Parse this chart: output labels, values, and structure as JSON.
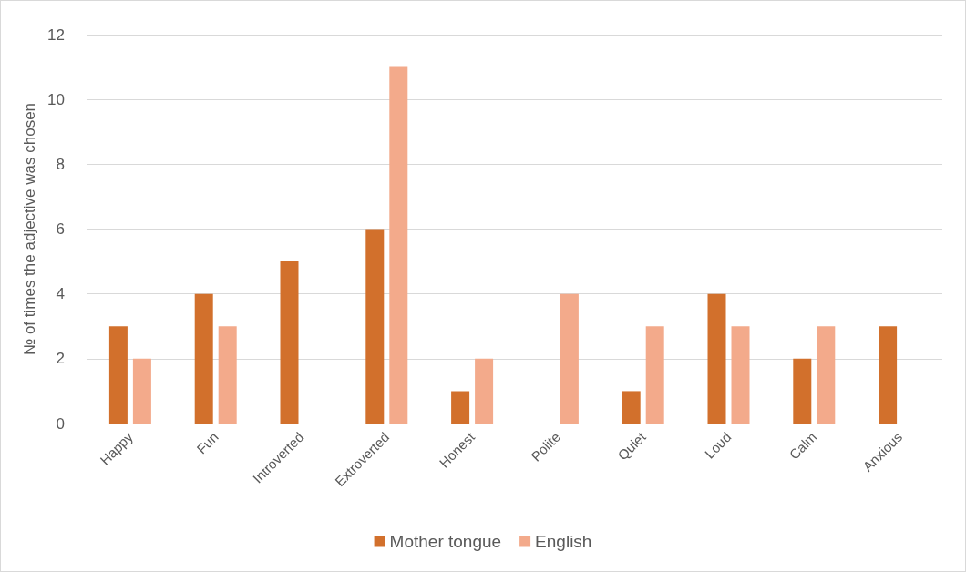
{
  "chart_data": {
    "type": "bar",
    "ylabel": "№ of times the adjective was chosen",
    "categories": [
      "Happy",
      "Fun",
      "Introverted",
      "Extroverted",
      "Honest",
      "Polite",
      "Quiet",
      "Loud",
      "Calm",
      "Anxious"
    ],
    "series": [
      {
        "name": "Mother tongue",
        "color": "#d2702c",
        "values": [
          3,
          4,
          5,
          6,
          1,
          0,
          1,
          4,
          2,
          3
        ]
      },
      {
        "name": "English",
        "color": "#f3aa8b",
        "values": [
          2,
          3,
          0,
          11,
          2,
          4,
          3,
          3,
          3,
          0
        ]
      }
    ],
    "ylim": [
      0,
      12
    ],
    "yticks": [
      0,
      2,
      4,
      6,
      8,
      10,
      12
    ],
    "grid": "y",
    "legend": "bottom"
  }
}
